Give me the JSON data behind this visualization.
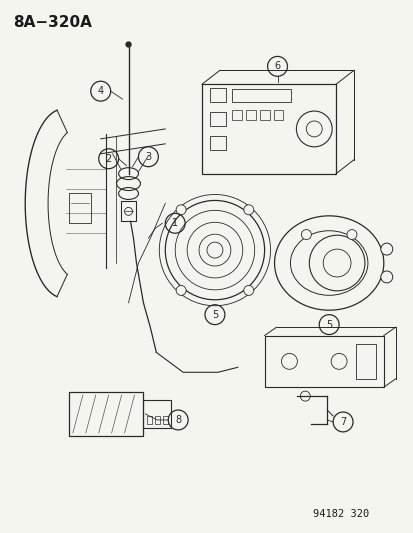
{
  "title": "8A−320A",
  "footer": "94182 320",
  "bg_color": "#f5f5f0",
  "fg_color": "#1a1a1a",
  "title_fontsize": 11,
  "footer_fontsize": 7.5,
  "ax_bg": "#f5f5f0"
}
